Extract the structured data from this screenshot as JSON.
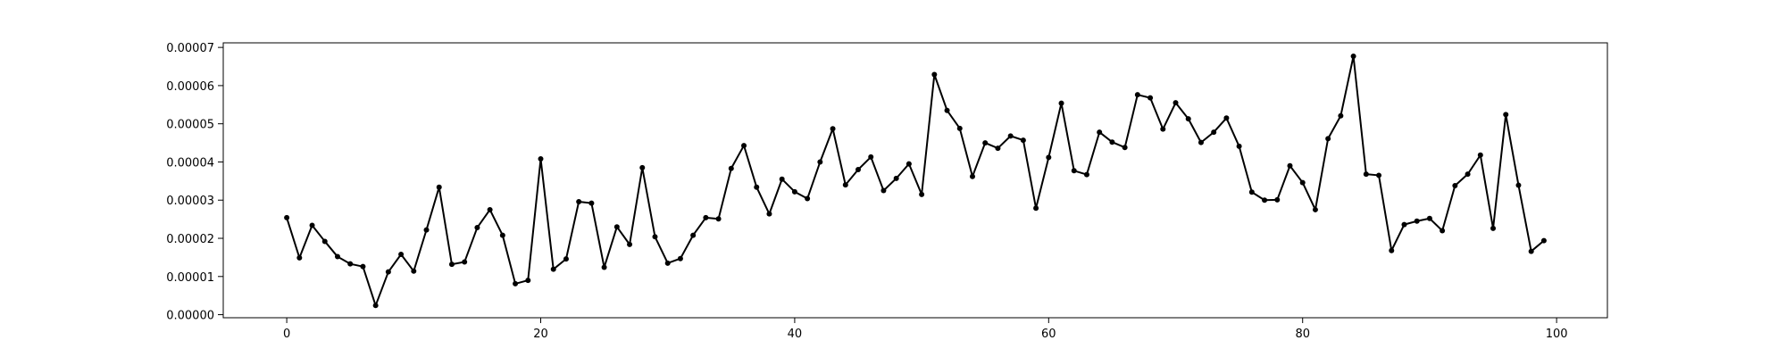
{
  "chart_data": {
    "type": "line",
    "title": "",
    "xlabel": "",
    "ylabel": "",
    "xlim": [
      -5,
      104
    ],
    "ylim": [
      -8e-07,
      7.12e-05
    ],
    "xticks": [
      0,
      20,
      40,
      60,
      80,
      100
    ],
    "xtick_labels": [
      "0",
      "20",
      "40",
      "60",
      "80",
      "100"
    ],
    "yticks": [
      0,
      1e-05,
      2e-05,
      3e-05,
      4e-05,
      5e-05,
      6e-05,
      7e-05
    ],
    "ytick_labels": [
      "0.00000",
      "0.00001",
      "0.00002",
      "0.00003",
      "0.00004",
      "0.00005",
      "0.00006",
      "0.00007"
    ],
    "grid": false,
    "legend": "none",
    "color": "#000000",
    "marker": "dot",
    "series": [
      {
        "x": [
          0,
          1,
          2,
          3,
          4,
          5,
          6,
          7,
          8,
          9,
          10,
          11,
          12,
          13,
          14,
          15,
          16,
          17,
          18,
          19,
          20,
          21,
          22,
          23,
          24,
          25,
          26,
          27,
          28,
          29,
          30,
          31,
          32,
          33,
          34,
          35,
          36,
          37,
          38,
          39,
          40,
          41,
          42,
          43,
          44,
          45,
          46,
          47,
          48,
          49,
          50,
          51,
          52,
          53,
          54,
          55,
          56,
          57,
          58,
          59,
          60,
          61,
          62,
          63,
          64,
          65,
          66,
          67,
          68,
          69,
          70,
          71,
          72,
          73,
          74,
          75,
          76,
          77,
          78,
          79,
          80,
          81,
          82,
          83,
          84,
          85,
          86,
          87,
          88,
          89,
          90,
          91,
          92,
          93,
          94,
          95,
          96,
          97,
          98,
          99
        ],
        "values": [
          2.54e-05,
          1.49e-05,
          2.34e-05,
          1.92e-05,
          1.52e-05,
          1.33e-05,
          1.26e-05,
          2.4e-06,
          1.12e-05,
          1.58e-05,
          1.14e-05,
          2.22e-05,
          3.34e-05,
          1.32e-05,
          1.38e-05,
          2.28e-05,
          2.75e-05,
          2.08e-05,
          8.1e-06,
          9e-06,
          4.08e-05,
          1.19e-05,
          1.46e-05,
          2.96e-05,
          2.92e-05,
          1.24e-05,
          2.3e-05,
          1.84e-05,
          3.85e-05,
          2.04e-05,
          1.35e-05,
          1.47e-05,
          2.08e-05,
          2.54e-05,
          2.51e-05,
          3.83e-05,
          4.43e-05,
          3.34e-05,
          2.64e-05,
          3.55e-05,
          3.22e-05,
          3.04e-05,
          4e-05,
          4.87e-05,
          3.4e-05,
          3.8e-05,
          4.13e-05,
          3.25e-05,
          3.57e-05,
          3.95e-05,
          3.15e-05,
          6.29e-05,
          5.35e-05,
          4.88e-05,
          3.62e-05,
          4.5e-05,
          4.36e-05,
          4.68e-05,
          4.57e-05,
          2.79e-05,
          4.12e-05,
          5.54e-05,
          3.77e-05,
          3.67e-05,
          4.78e-05,
          4.52e-05,
          4.38e-05,
          5.76e-05,
          5.68e-05,
          4.86e-05,
          5.55e-05,
          5.13e-05,
          4.51e-05,
          4.78e-05,
          5.15e-05,
          4.41e-05,
          3.21e-05,
          3e-05,
          3.01e-05,
          3.9e-05,
          3.46e-05,
          2.75e-05,
          4.61e-05,
          5.21e-05,
          6.77e-05,
          3.68e-05,
          3.65e-05,
          1.68e-05,
          2.36e-05,
          2.45e-05,
          2.52e-05,
          2.2e-05,
          3.38e-05,
          3.68e-05,
          4.18e-05,
          2.26e-05,
          5.24e-05,
          3.39e-05,
          1.66e-05,
          1.94e-05
        ]
      }
    ]
  }
}
